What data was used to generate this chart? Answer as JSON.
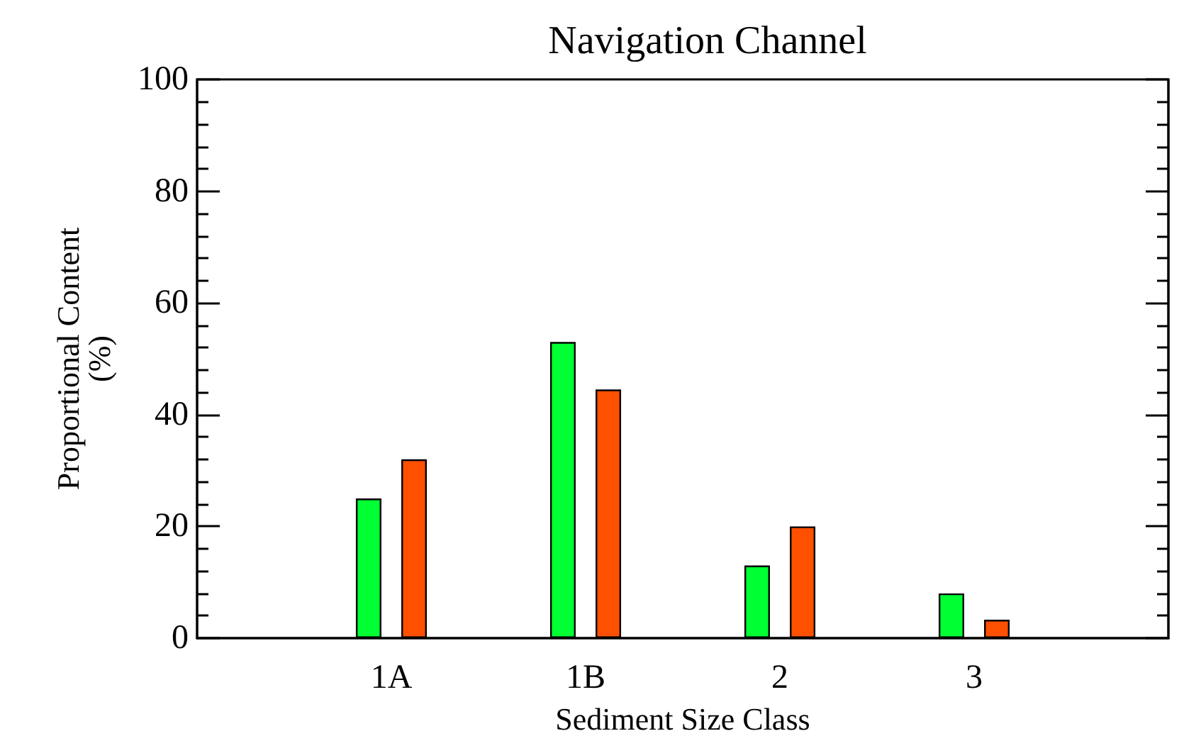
{
  "chart_data": {
    "type": "bar",
    "title": "Navigation Channel",
    "xlabel": "Sediment Size Class",
    "ylabel": "Proportional Content\n(%)",
    "categories": [
      "1A",
      "1B",
      "2",
      "3"
    ],
    "series": [
      {
        "color": "#00ff33",
        "values": [
          25,
          53,
          13,
          8
        ]
      },
      {
        "color": "#ff5000",
        "values": [
          32,
          44.5,
          20,
          3.3
        ]
      }
    ],
    "ylim": [
      0,
      100
    ],
    "yticks": [
      0,
      20,
      40,
      60,
      80,
      100
    ],
    "grid": false
  }
}
